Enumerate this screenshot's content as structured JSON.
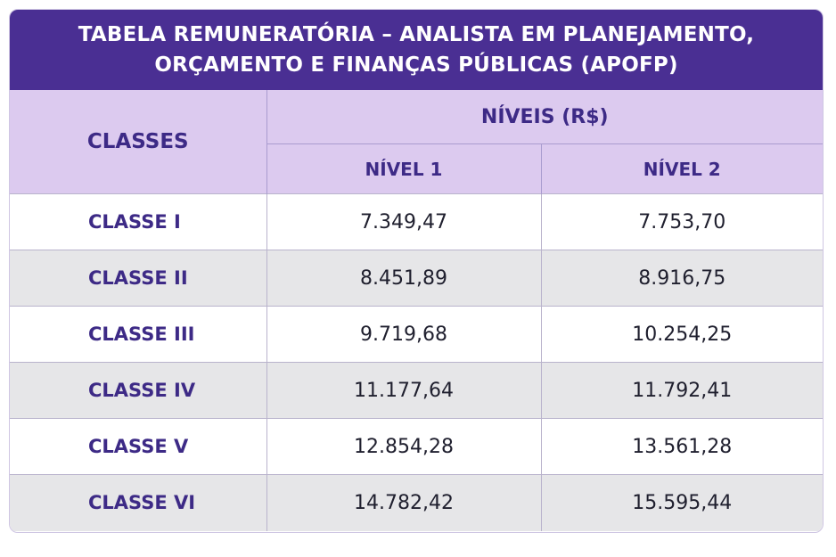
{
  "title": {
    "line1": "TABELA REMUNERATÓRIA – ANALISTA EM PLANEJAMENTO,",
    "line2": "ORÇAMENTO E FINANÇAS PÚBLICAS (APOFP)"
  },
  "headers": {
    "classes": "CLASSES",
    "niveis": "NÍVEIS (R$)",
    "nivel1": "NÍVEL 1",
    "nivel2": "NÍVEL 2"
  },
  "rows": [
    {
      "classe": "CLASSE I",
      "nivel1": "7.349,47",
      "nivel2": "7.753,70"
    },
    {
      "classe": "CLASSE II",
      "nivel1": "8.451,89",
      "nivel2": "8.916,75"
    },
    {
      "classe": "CLASSE III",
      "nivel1": "9.719,68",
      "nivel2": "10.254,25"
    },
    {
      "classe": "CLASSE IV",
      "nivel1": "11.177,64",
      "nivel2": "11.792,41"
    },
    {
      "classe": "CLASSE V",
      "nivel1": "12.854,28",
      "nivel2": "13.561,28"
    },
    {
      "classe": "CLASSE VI",
      "nivel1": "14.782,42",
      "nivel2": "15.595,44"
    }
  ],
  "colors": {
    "title_bg": "#4a2f93",
    "header_bg": "#dccaef",
    "accent_text": "#3d2a86",
    "row_alt_bg": "#e6e6e8"
  }
}
